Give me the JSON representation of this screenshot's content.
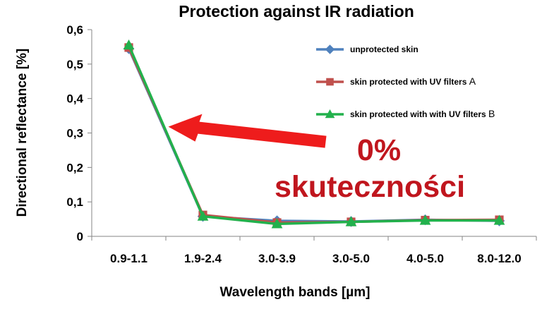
{
  "chart_data": {
    "type": "line",
    "title": "Protection against IR radiation",
    "xlabel": "Wavelength bands [µm]",
    "ylabel": "Directional reflectance  [%]",
    "categories": [
      "0.9-1.1",
      "1.9-2.4",
      "3.0-3.9",
      "3.0-5.0",
      "4.0-5.0",
      "8.0-12.0"
    ],
    "ylim": [
      0,
      0.6
    ],
    "yticks": [
      "0",
      "0,1",
      "0,2",
      "0,3",
      "0,4",
      "0,5",
      "0,6"
    ],
    "grid": false,
    "legend_position": "top-right",
    "series": [
      {
        "name": "unprotected skin",
        "name_suffix": "",
        "color": "#4f81bd",
        "marker": "diamond",
        "values": [
          0.545,
          0.058,
          0.045,
          0.043,
          0.048,
          0.045
        ]
      },
      {
        "name": "skin protected with UV filters ",
        "name_suffix": "A",
        "color": "#c0504d",
        "marker": "square",
        "values": [
          0.548,
          0.062,
          0.04,
          0.042,
          0.047,
          0.048
        ]
      },
      {
        "name": "skin protected with with UV filters ",
        "name_suffix": "B",
        "color": "#22b14c",
        "marker": "triangle",
        "values": [
          0.555,
          0.058,
          0.036,
          0.042,
          0.046,
          0.046
        ]
      }
    ],
    "annotations": {
      "line1": "0%",
      "line2": "skuteczności",
      "color": "#c0161e",
      "arrow_color": "#ee1c1c",
      "arrow_target": {
        "category": "0.9-1.1",
        "value": 0.31
      }
    }
  }
}
